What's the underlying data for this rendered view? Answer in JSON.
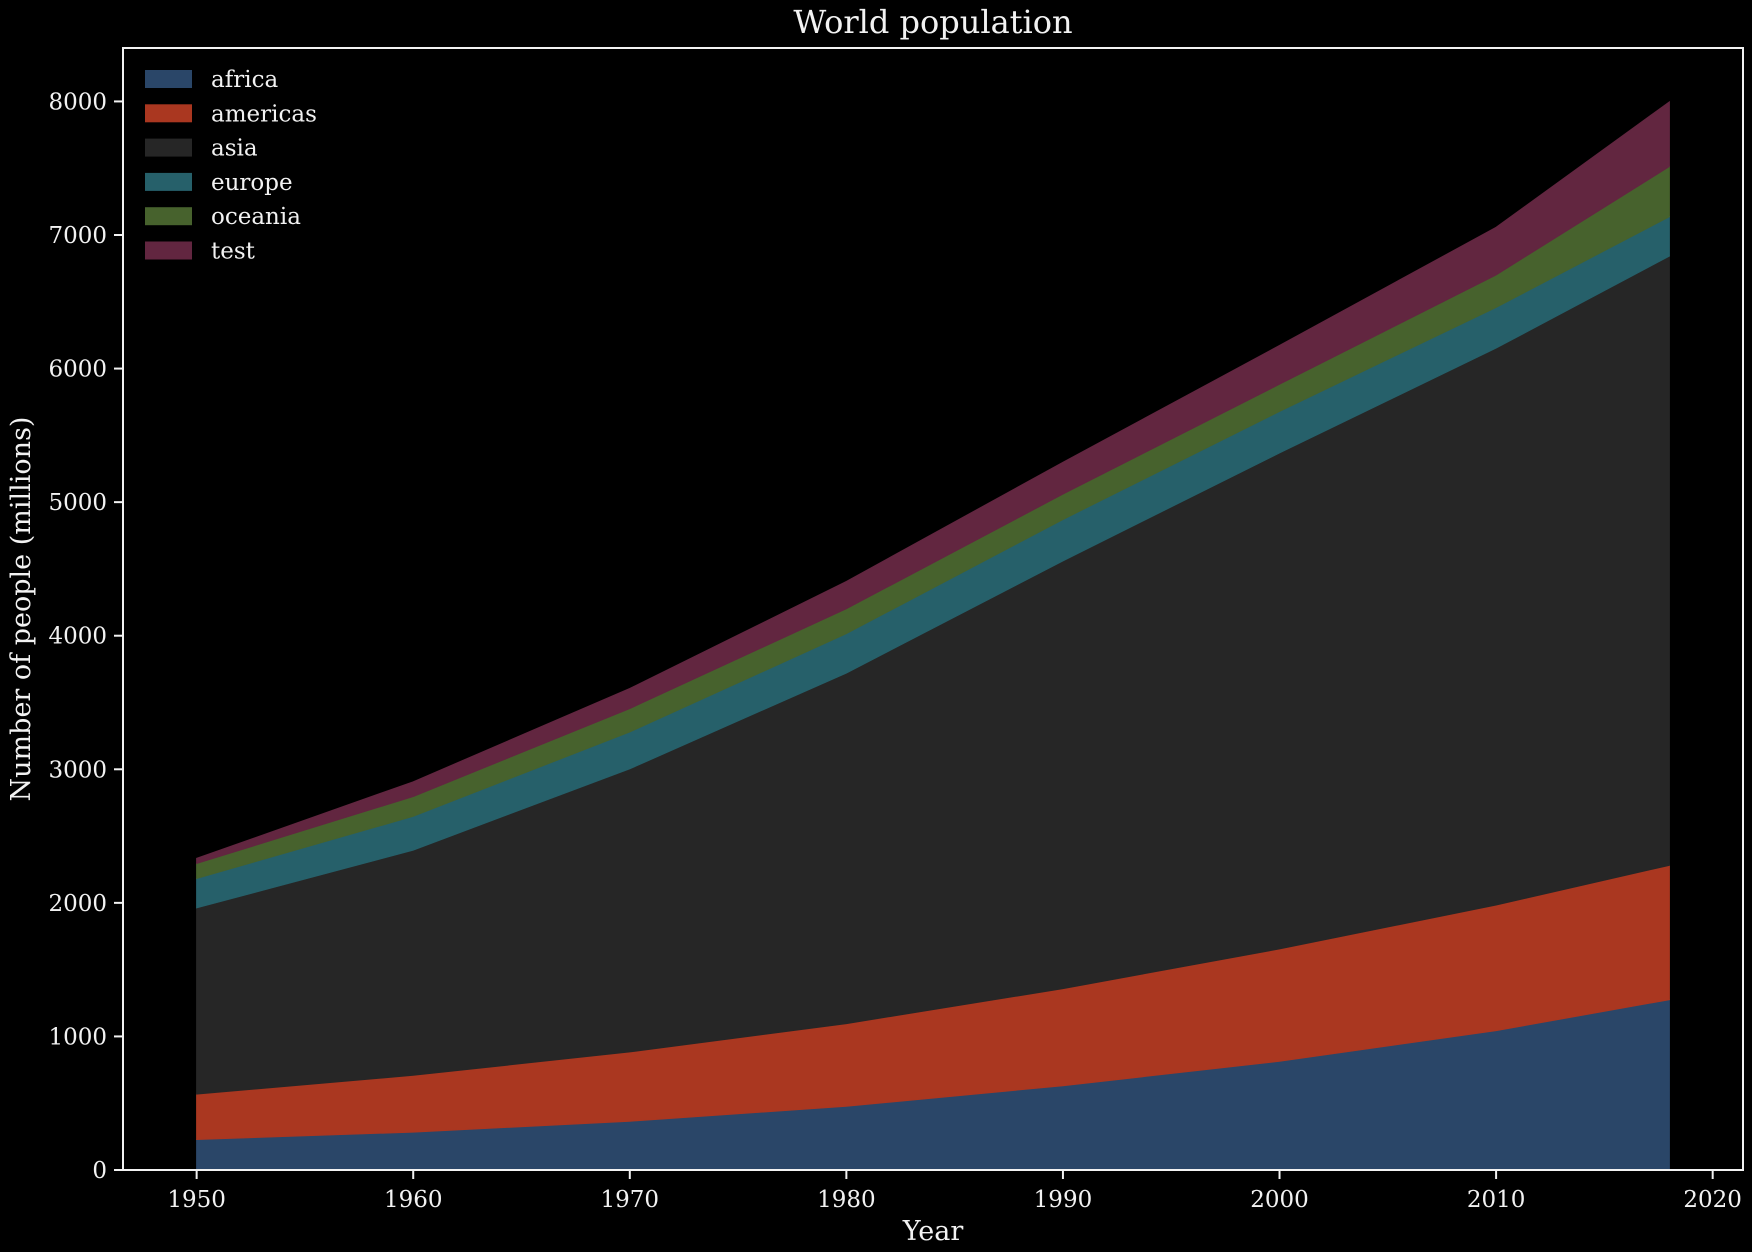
{
  "chart_data": {
    "type": "area",
    "stacked": true,
    "title": "World population",
    "xlabel": "Year",
    "ylabel": "Number of people (millions)",
    "xlim": [
      1946.6,
      2021.4
    ],
    "ylim": [
      0,
      8400
    ],
    "x_ticks": [
      1950,
      1960,
      1970,
      1980,
      1990,
      2000,
      2010,
      2020
    ],
    "y_ticks": [
      0,
      1000,
      2000,
      3000,
      4000,
      5000,
      6000,
      7000,
      8000
    ],
    "grid": false,
    "legend_position": "top-left",
    "x": [
      1950,
      1960,
      1970,
      1980,
      1990,
      2000,
      2010,
      2018
    ],
    "series": [
      {
        "name": "africa",
        "color": "#2a4668",
        "values": [
          228,
          284,
          365,
          477,
          631,
          814,
          1044,
          1275
        ]
      },
      {
        "name": "americas",
        "color": "#aa3720",
        "values": [
          340,
          425,
          519,
          619,
          727,
          841,
          940,
          1006
        ]
      },
      {
        "name": "asia",
        "color": "#262626",
        "values": [
          1394,
          1686,
          2120,
          2625,
          3202,
          3714,
          4169,
          4561
        ]
      },
      {
        "name": "europe",
        "color": "#26606a",
        "values": [
          220,
          253,
          276,
          295,
          310,
          310,
          305,
          295
        ]
      },
      {
        "name": "oceania",
        "color": "#47622d",
        "values": [
          113,
          148,
          175,
          186,
          190,
          204,
          243,
          376
        ]
      },
      {
        "name": "test",
        "color": "#622640",
        "values": [
          38,
          110,
          150,
          205,
          238,
          290,
          357,
          484
        ]
      }
    ]
  }
}
